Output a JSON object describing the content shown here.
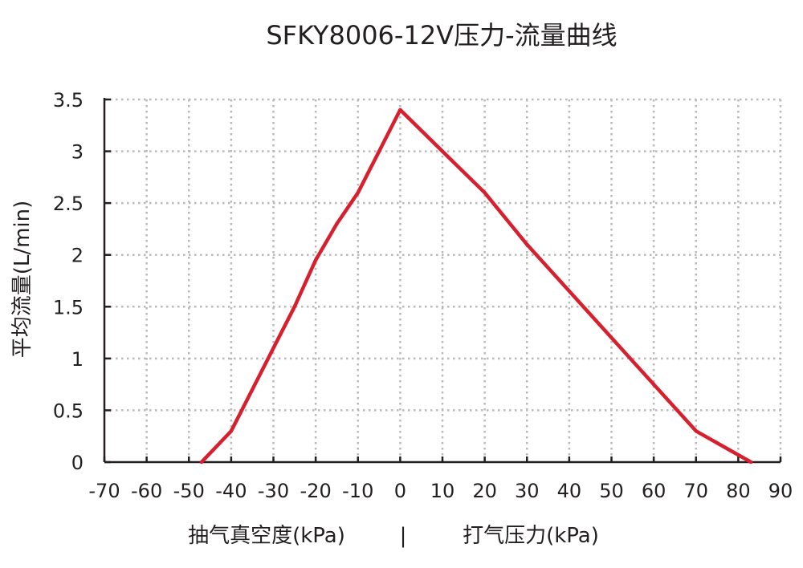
{
  "chart_data": {
    "type": "line",
    "title": "SFKY8006-12V压力-流量曲线",
    "ylabel": "平均流量(L/min)",
    "xlabel_left": "抽气真空度(kPa)",
    "xlabel_separator": "|",
    "xlabel_right": "打气压力(kPa)",
    "xlim": [
      -70,
      90
    ],
    "ylim": [
      0,
      3.5
    ],
    "x_ticks": [
      -70,
      -60,
      -50,
      -40,
      -30,
      -20,
      -10,
      0,
      10,
      20,
      30,
      40,
      50,
      60,
      70,
      80,
      90
    ],
    "x_tick_labels": [
      "-70",
      "-60",
      "-50",
      "-40",
      "-30",
      "-20",
      "-10",
      "0",
      "10",
      "20",
      "30",
      "40",
      "50",
      "60",
      "70",
      "80",
      "90"
    ],
    "y_ticks": [
      0,
      0.5,
      1,
      1.5,
      2,
      2.5,
      3,
      3.5
    ],
    "y_tick_labels": [
      "0",
      "0.5",
      "1",
      "1.5",
      "2",
      "2.5",
      "3",
      "3.5"
    ],
    "grid": true,
    "line_color": "#d71f2e",
    "series": [
      {
        "x": [
          -47,
          -40,
          -35,
          -30,
          -25,
          -20,
          -15,
          -10,
          -5,
          0,
          10,
          20,
          30,
          40,
          50,
          60,
          70,
          83
        ],
        "y": [
          0,
          0.3,
          0.7,
          1.1,
          1.5,
          1.95,
          2.3,
          2.6,
          3.0,
          3.4,
          3.0,
          2.6,
          2.1,
          1.65,
          1.2,
          0.75,
          0.3,
          0
        ]
      }
    ]
  }
}
